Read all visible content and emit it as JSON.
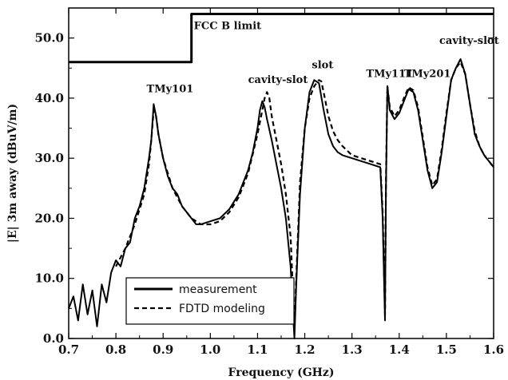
{
  "chart_data": {
    "type": "line",
    "title": "",
    "xlabel": "Frequency (GHz)",
    "ylabel": "|E| 3m away (dBuV/m)",
    "xlim": [
      0.7,
      1.6
    ],
    "ylim": [
      0.0,
      55.0
    ],
    "xticks": [
      "0.7",
      "0.8",
      "0.9",
      "1.0",
      "1.1",
      "1.2",
      "1.3",
      "1.4",
      "1.5",
      "1.6"
    ],
    "yticks": [
      "0.0",
      "10.0",
      "20.0",
      "30.0",
      "40.0",
      "50.0"
    ],
    "grid": false,
    "legend_position": "bottom-left",
    "series": [
      {
        "name": "measurement",
        "style": "solid",
        "color": "#000000",
        "x": [
          0.7,
          0.71,
          0.72,
          0.73,
          0.74,
          0.75,
          0.76,
          0.77,
          0.78,
          0.79,
          0.8,
          0.81,
          0.82,
          0.83,
          0.84,
          0.85,
          0.86,
          0.87,
          0.875,
          0.88,
          0.885,
          0.89,
          0.9,
          0.91,
          0.92,
          0.93,
          0.94,
          0.95,
          0.96,
          0.97,
          0.98,
          1.0,
          1.02,
          1.04,
          1.06,
          1.08,
          1.09,
          1.1,
          1.105,
          1.11,
          1.115,
          1.12,
          1.13,
          1.14,
          1.15,
          1.16,
          1.17,
          1.178,
          1.182,
          1.19,
          1.2,
          1.21,
          1.22,
          1.23,
          1.24,
          1.25,
          1.26,
          1.27,
          1.28,
          1.3,
          1.32,
          1.34,
          1.36,
          1.365,
          1.37,
          1.372,
          1.375,
          1.38,
          1.39,
          1.4,
          1.41,
          1.42,
          1.43,
          1.44,
          1.45,
          1.46,
          1.47,
          1.48,
          1.49,
          1.5,
          1.51,
          1.52,
          1.53,
          1.54,
          1.55,
          1.56,
          1.57,
          1.58,
          1.59,
          1.6
        ],
        "y": [
          5.0,
          7.0,
          3.0,
          9.0,
          4.0,
          8.0,
          2.0,
          9.0,
          6.0,
          11.0,
          13.0,
          12.0,
          15.0,
          16.0,
          20.0,
          22.0,
          25.0,
          30.0,
          33.0,
          39.0,
          37.0,
          34.0,
          30.0,
          27.0,
          25.0,
          24.0,
          22.0,
          21.0,
          20.0,
          19.0,
          19.0,
          19.5,
          20.0,
          21.5,
          24.0,
          28.0,
          31.0,
          35.0,
          38.0,
          39.5,
          38.5,
          36.5,
          33.0,
          29.0,
          25.0,
          20.0,
          12.0,
          0.0,
          9.0,
          24.0,
          35.0,
          41.0,
          43.0,
          42.5,
          38.0,
          34.0,
          32.0,
          31.0,
          30.5,
          30.0,
          29.5,
          29.0,
          28.5,
          20.0,
          3.0,
          25.0,
          42.0,
          38.0,
          36.5,
          37.5,
          39.5,
          41.5,
          41.0,
          38.0,
          33.0,
          28.0,
          25.0,
          26.0,
          31.0,
          37.0,
          43.0,
          45.0,
          46.5,
          44.0,
          39.0,
          34.0,
          32.0,
          30.5,
          29.5,
          28.5
        ]
      },
      {
        "name": "FDTD modeling",
        "style": "dashed",
        "color": "#000000",
        "x": [
          0.8,
          0.82,
          0.84,
          0.86,
          0.87,
          0.875,
          0.88,
          0.885,
          0.89,
          0.9,
          0.92,
          0.94,
          0.96,
          0.98,
          1.0,
          1.02,
          1.04,
          1.06,
          1.08,
          1.1,
          1.11,
          1.115,
          1.12,
          1.125,
          1.13,
          1.14,
          1.15,
          1.16,
          1.17,
          1.178,
          1.182,
          1.19,
          1.2,
          1.21,
          1.22,
          1.23,
          1.235,
          1.24,
          1.25,
          1.26,
          1.27,
          1.28,
          1.3,
          1.32,
          1.34,
          1.36,
          1.365,
          1.37,
          1.372,
          1.375,
          1.38,
          1.39,
          1.4,
          1.41,
          1.42,
          1.43,
          1.44,
          1.45,
          1.46,
          1.47,
          1.48,
          1.49,
          1.5,
          1.51,
          1.52,
          1.53,
          1.54,
          1.55,
          1.56,
          1.57,
          1.58,
          1.6
        ],
        "y": [
          12.0,
          15.0,
          19.0,
          24.0,
          29.0,
          33.0,
          38.0,
          37.0,
          34.0,
          30.0,
          25.0,
          22.0,
          20.0,
          19.0,
          19.0,
          19.5,
          21.0,
          23.5,
          27.5,
          34.0,
          38.0,
          40.0,
          41.0,
          40.0,
          37.0,
          33.0,
          29.0,
          24.0,
          17.0,
          2.0,
          10.0,
          26.0,
          35.0,
          40.0,
          42.0,
          43.0,
          42.8,
          41.0,
          37.0,
          34.5,
          33.0,
          32.0,
          30.5,
          30.0,
          29.5,
          29.0,
          21.0,
          4.0,
          26.0,
          42.0,
          38.5,
          37.0,
          38.0,
          40.0,
          41.8,
          41.3,
          38.5,
          33.5,
          28.5,
          25.5,
          26.5,
          31.5,
          37.5,
          43.0,
          45.0,
          46.0,
          44.0,
          39.0,
          34.5,
          32.0,
          30.5,
          28.5
        ]
      },
      {
        "name": "FCC B limit",
        "style": "solid-thick",
        "color": "#000000",
        "x": [
          0.7,
          0.96,
          0.96,
          1.6
        ],
        "y": [
          46.0,
          46.0,
          54.0,
          54.0
        ]
      }
    ],
    "annotations": [
      {
        "text": "FCC B limit",
        "x": 0.965,
        "y": 51.5
      },
      {
        "text": "TMy101",
        "x": 0.865,
        "y": 41.0
      },
      {
        "text": "cavity-slot",
        "x": 1.08,
        "y": 42.5
      },
      {
        "text": "slot",
        "x": 1.215,
        "y": 45.0
      },
      {
        "text": "TMy111",
        "x": 1.33,
        "y": 43.5
      },
      {
        "text": "TMy201",
        "x": 1.41,
        "y": 43.5
      },
      {
        "text": "cavity-slot",
        "x": 1.485,
        "y": 49.0
      }
    ]
  }
}
